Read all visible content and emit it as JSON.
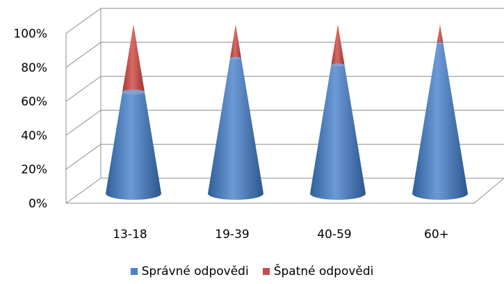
{
  "chart_data": {
    "type": "bar",
    "style": "3d-cone-stacked-100",
    "categories": [
      "13-18",
      "19-39",
      "40-59",
      "60+"
    ],
    "series": [
      {
        "name": "Správné odpovědi",
        "color": "#4F81BD",
        "values": [
          60,
          80,
          76,
          89
        ]
      },
      {
        "name": "Špatné odpovědi",
        "color": "#C0504D",
        "values": [
          40,
          20,
          24,
          11
        ]
      }
    ],
    "yticks": [
      "0%",
      "20%",
      "40%",
      "60%",
      "80%",
      "100%"
    ],
    "ylim": [
      0,
      100
    ],
    "grid": true,
    "legend_position": "bottom"
  }
}
